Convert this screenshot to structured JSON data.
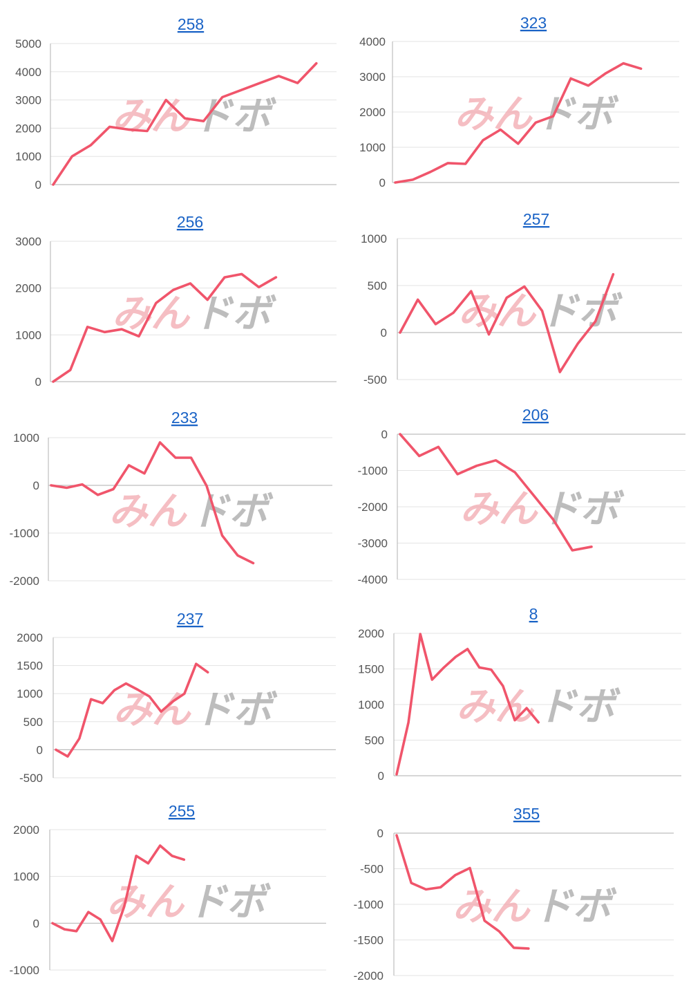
{
  "colors": {
    "line": "#f0556b",
    "title": "#1a63c6",
    "tick": "#555555",
    "grid": "#e3e3e3"
  },
  "watermark": {
    "part1": "みん",
    "part2": "ドボ"
  },
  "chart_data": [
    {
      "type": "line",
      "title": "258",
      "ylim": [
        0,
        5000
      ],
      "yticks": [
        0,
        1000,
        2000,
        3000,
        4000,
        5000
      ],
      "tick_labels": [
        "0",
        "1000",
        "2000",
        "3000",
        "4000",
        "5000"
      ],
      "grid": true,
      "series": [
        {
          "values": [
            0,
            1000,
            1400,
            2050,
            1950,
            1900,
            3000,
            2350,
            2250,
            3100,
            3350,
            3600,
            3850,
            3600,
            4300
          ]
        }
      ]
    },
    {
      "type": "line",
      "title": "323",
      "ylim": [
        0,
        4000
      ],
      "yticks": [
        0,
        1000,
        2000,
        3000,
        4000
      ],
      "tick_labels": [
        "0",
        "1000",
        "2000",
        "3000",
        "4000"
      ],
      "grid": true,
      "series": [
        {
          "values": [
            0,
            80,
            300,
            550,
            530,
            1200,
            1500,
            1100,
            1700,
            1880,
            2950,
            2750,
            3100,
            3380,
            3230
          ]
        }
      ]
    },
    {
      "type": "line",
      "title": "256",
      "ylim": [
        0,
        3000
      ],
      "yticks": [
        0,
        1000,
        2000,
        3000
      ],
      "tick_labels": [
        "0",
        "1000",
        "2000",
        "3000"
      ],
      "grid": true,
      "series": [
        {
          "values": [
            0,
            250,
            1170,
            1060,
            1120,
            970,
            1680,
            1960,
            2100,
            1750,
            2230,
            2300,
            2020,
            2230
          ]
        }
      ]
    },
    {
      "type": "line",
      "title": "257",
      "ylim": [
        -500,
        1000
      ],
      "yticks": [
        -500,
        0,
        500,
        1000
      ],
      "tick_labels": [
        "-500",
        "0",
        "500",
        "1000"
      ],
      "grid": true,
      "series": [
        {
          "values": [
            0,
            350,
            90,
            210,
            440,
            -20,
            370,
            490,
            230,
            -420,
            -120,
            120,
            620
          ]
        }
      ]
    },
    {
      "type": "line",
      "title": "233",
      "ylim": [
        -2000,
        1000
      ],
      "yticks": [
        -2000,
        -1000,
        0,
        1000
      ],
      "tick_labels": [
        "-2000",
        "-1000",
        "0",
        "1000"
      ],
      "grid": true,
      "series": [
        {
          "values": [
            0,
            -50,
            20,
            -200,
            -80,
            420,
            250,
            900,
            580,
            580,
            -10,
            -1050,
            -1470,
            -1630
          ]
        }
      ]
    },
    {
      "type": "line",
      "title": "206",
      "ylim": [
        -4000,
        0
      ],
      "yticks": [
        -4000,
        -3000,
        -2000,
        -1000,
        0
      ],
      "tick_labels": [
        "-4000",
        "-3000",
        "-2000",
        "-1000",
        "0"
      ],
      "grid": true,
      "series": [
        {
          "values": [
            0,
            -600,
            -350,
            -1100,
            -870,
            -720,
            -1050,
            -1700,
            -2350,
            -3200,
            -3100
          ]
        }
      ]
    },
    {
      "type": "line",
      "title": "237",
      "ylim": [
        -500,
        2000
      ],
      "yticks": [
        -500,
        0,
        500,
        1000,
        1500,
        2000
      ],
      "tick_labels": [
        "-500",
        "0",
        "500",
        "1000",
        "1500",
        "2000"
      ],
      "grid": true,
      "series": [
        {
          "values": [
            0,
            -120,
            200,
            900,
            830,
            1060,
            1180,
            1070,
            950,
            680,
            860,
            1000,
            1530,
            1380
          ]
        }
      ]
    },
    {
      "type": "line",
      "title": "8",
      "ylim": [
        0,
        2000
      ],
      "yticks": [
        0,
        500,
        1000,
        1500,
        2000
      ],
      "tick_labels": [
        "0",
        "500",
        "1000",
        "1500",
        "2000"
      ],
      "grid": true,
      "series": [
        {
          "values": [
            20,
            750,
            1990,
            1350,
            1520,
            1670,
            1780,
            1520,
            1490,
            1260,
            780,
            950,
            750
          ]
        }
      ]
    },
    {
      "type": "line",
      "title": "255",
      "ylim": [
        -1000,
        2000
      ],
      "yticks": [
        -1000,
        0,
        1000,
        2000
      ],
      "tick_labels": [
        "-1000",
        "0",
        "1000",
        "2000"
      ],
      "grid": true,
      "series": [
        {
          "values": [
            0,
            -130,
            -170,
            240,
            80,
            -380,
            360,
            1440,
            1280,
            1660,
            1440,
            1360
          ]
        }
      ]
    },
    {
      "type": "line",
      "title": "355",
      "ylim": [
        -2000,
        0
      ],
      "yticks": [
        -2000,
        -1500,
        -1000,
        -500,
        0
      ],
      "tick_labels": [
        "-2000",
        "-1500",
        "-1000",
        "-500",
        "0"
      ],
      "grid": true,
      "series": [
        {
          "values": [
            -30,
            -700,
            -790,
            -760,
            -590,
            -490,
            -1230,
            -1380,
            -1610,
            -1620
          ]
        }
      ]
    }
  ]
}
